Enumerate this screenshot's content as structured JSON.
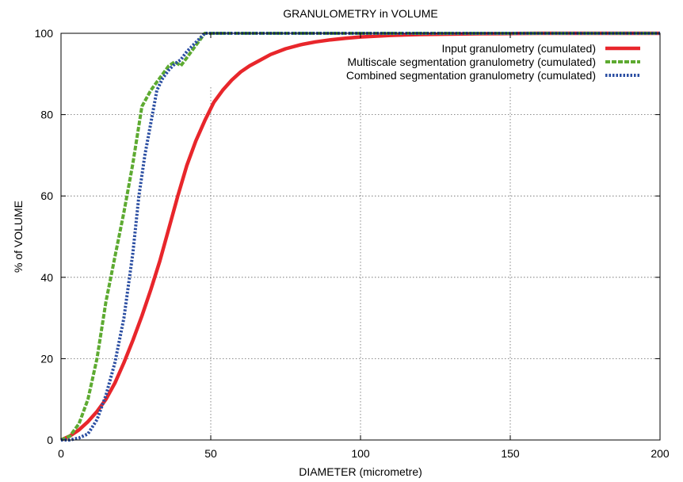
{
  "chart_data": {
    "type": "line",
    "title": "GRANULOMETRY in VOLUME",
    "xlabel": "DIAMETER (micrometre)",
    "ylabel": "% of VOLUME",
    "xlim": [
      0,
      200
    ],
    "ylim": [
      0,
      100
    ],
    "xticks": [
      "0",
      "50",
      "100",
      "150",
      "200"
    ],
    "yticks": [
      "0",
      "20",
      "40",
      "60",
      "80",
      "100"
    ],
    "grid": true,
    "legend_position": "top-right",
    "series": [
      {
        "name": "Input granulometry (cumulated)",
        "color": "#e8262b",
        "style": "solid",
        "x": [
          0,
          3,
          6,
          9,
          12,
          15,
          18,
          21,
          24,
          27,
          30,
          33,
          36,
          39,
          42,
          45,
          48,
          51,
          54,
          57,
          60,
          63,
          66,
          70,
          75,
          80,
          85,
          90,
          95,
          100,
          110,
          120,
          130,
          140,
          150,
          160,
          170,
          180,
          190,
          200
        ],
        "y": [
          0,
          1,
          2.5,
          4.5,
          7,
          10,
          14,
          19,
          24.5,
          30.5,
          37,
          44,
          52,
          60,
          67.5,
          73.5,
          78.5,
          83,
          86,
          88.5,
          90.5,
          92,
          93.2,
          94.8,
          96.2,
          97.2,
          97.9,
          98.4,
          98.8,
          99.1,
          99.5,
          99.7,
          99.8,
          99.9,
          99.95,
          100,
          100,
          100,
          100,
          100
        ]
      },
      {
        "name": "Multiscale segmentation granulometry (cumulated)",
        "color": "#5daa31",
        "style": "dashed",
        "x": [
          0,
          3,
          6,
          9,
          12,
          15,
          18,
          21,
          24,
          27,
          30,
          33,
          36,
          38,
          40,
          42,
          44,
          46,
          48,
          50,
          60,
          100,
          150,
          200
        ],
        "y": [
          0,
          1,
          4,
          10,
          20,
          34,
          45,
          56,
          68,
          82,
          86,
          89,
          92,
          93,
          92,
          94,
          96,
          98,
          100,
          100,
          100,
          100,
          100,
          100
        ]
      },
      {
        "name": "Combined segmentation granulometry (cumulated)",
        "color": "#2b4ea2",
        "style": "dotted",
        "x": [
          0,
          3,
          6,
          9,
          12,
          15,
          18,
          21,
          24,
          26,
          28,
          30,
          32,
          34,
          36,
          38,
          40,
          42,
          44,
          46,
          48,
          50,
          60,
          100,
          150,
          200
        ],
        "y": [
          0,
          0,
          0.5,
          1.5,
          5,
          11,
          19,
          30,
          46,
          60,
          70,
          78,
          86,
          89,
          91,
          92.5,
          93.5,
          95.5,
          97,
          98.5,
          100,
          100,
          100,
          100,
          100,
          100
        ]
      }
    ]
  }
}
